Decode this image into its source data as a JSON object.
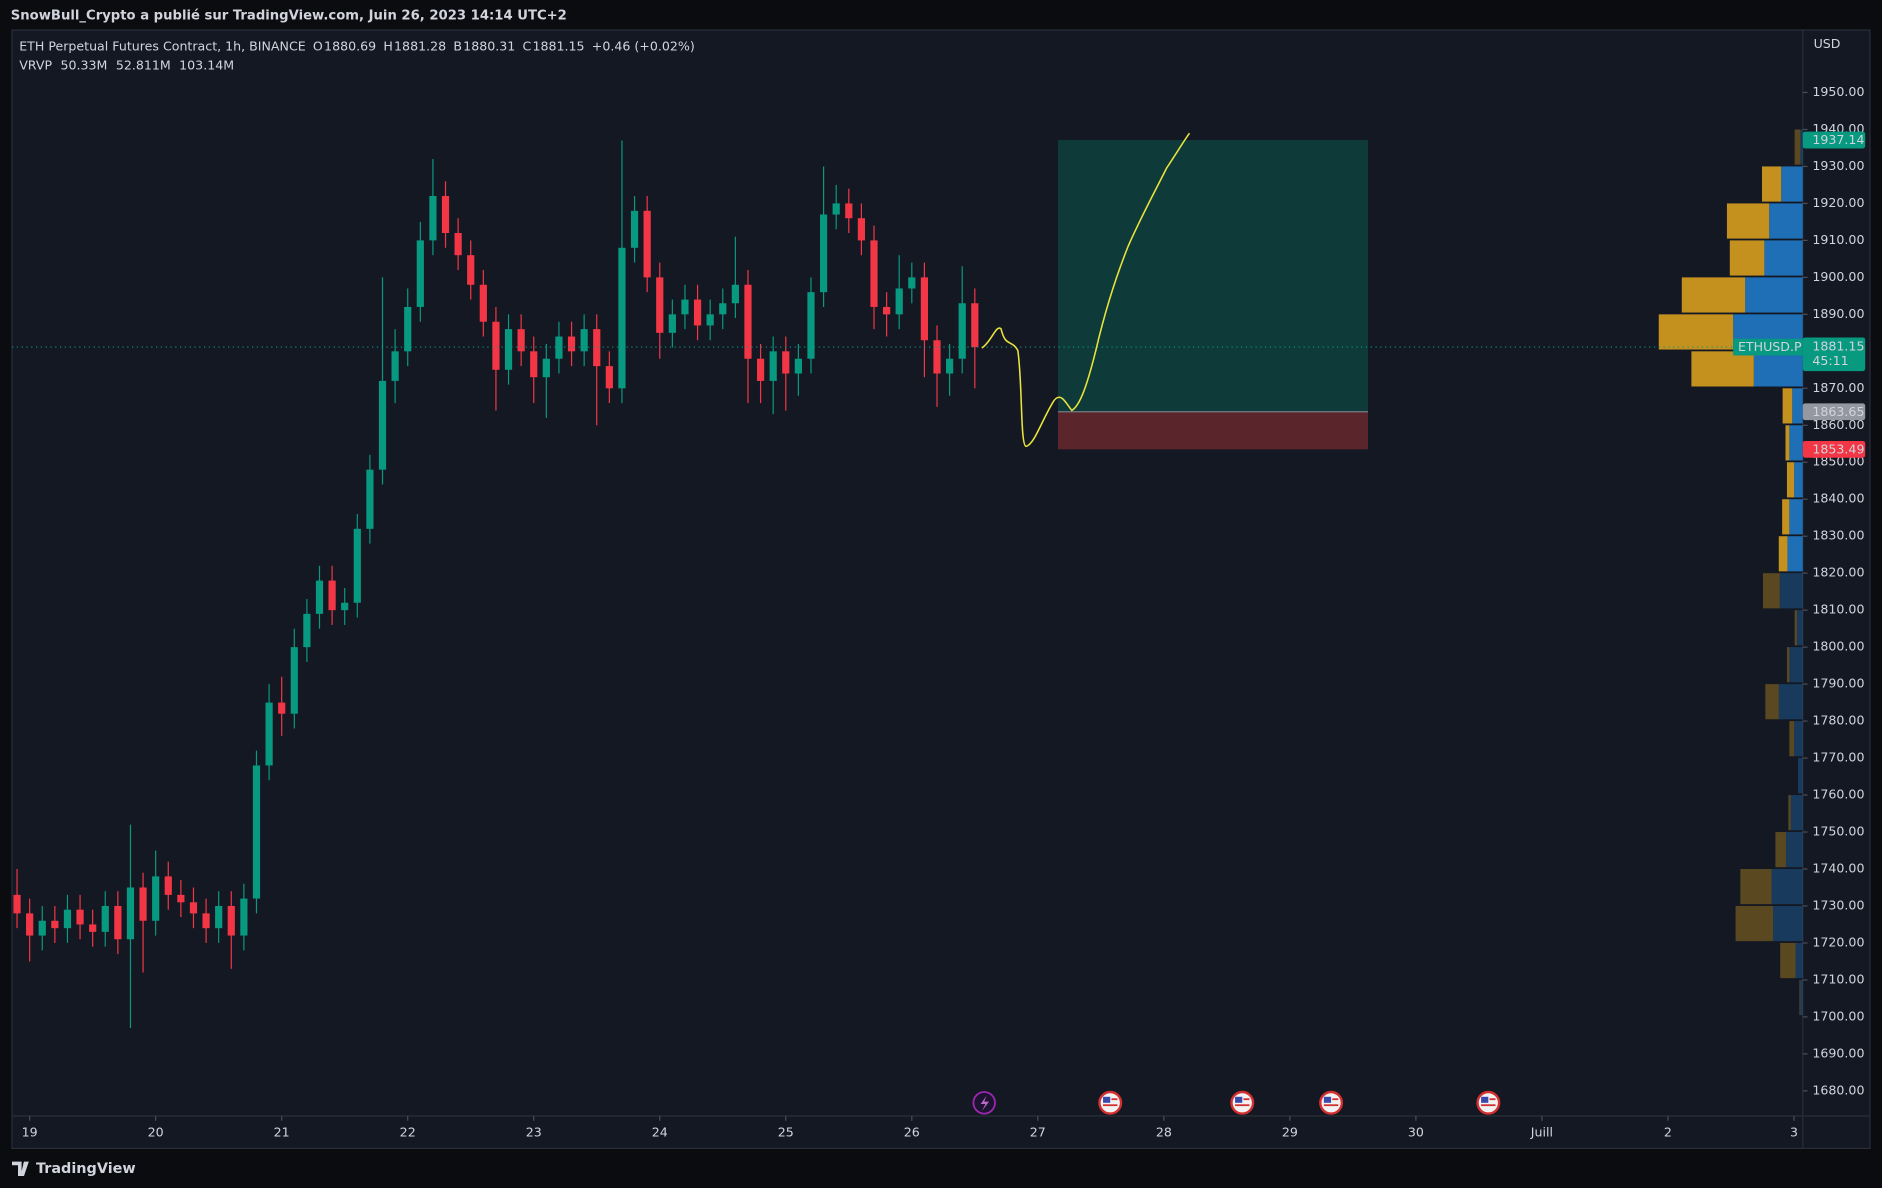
{
  "header": {
    "published": "SnowBull_Crypto a publié sur TradingView.com, Juin 26, 2023 14:14 UTC+2"
  },
  "footer": {
    "brand": "TradingView"
  },
  "chart_data": {
    "type": "candlestick",
    "title": "ETH Perpetual Futures Contract, 1h, BINANCE",
    "ohlc_legend": [
      {
        "label": "O",
        "value": 1880.69
      },
      {
        "label": "H",
        "value": 1881.28
      },
      {
        "label": "B",
        "value": 1880.31
      },
      {
        "label": "C",
        "value": 1881.15
      }
    ],
    "change": "+0.46 (+0.02%)",
    "currency": "USD",
    "symbol": "ETHUSD.P",
    "countdown": "45:11",
    "up_color": "#089981",
    "down_color": "#f23645",
    "x": [
      -0.1,
      0,
      0.1,
      0.2,
      0.3,
      0.4,
      0.5,
      0.6,
      0.7,
      0.8,
      0.9,
      1,
      1.1,
      1.2,
      1.3,
      1.4,
      1.5,
      1.6,
      1.7,
      1.8,
      1.9,
      2,
      2.1,
      2.2,
      2.3,
      2.4,
      2.5,
      2.6,
      2.7,
      2.8,
      2.9,
      3,
      3.1,
      3.2,
      3.3,
      3.4,
      3.5,
      3.6,
      3.7,
      3.8,
      3.9,
      4,
      4.1,
      4.2,
      4.3,
      4.4,
      4.5,
      4.6,
      4.7,
      4.8,
      4.9,
      5,
      5.1,
      5.2,
      5.3,
      5.4,
      5.5,
      5.6,
      5.7,
      5.8,
      5.9,
      6,
      6.1,
      6.2,
      6.3,
      6.4,
      6.5,
      6.6,
      6.7,
      6.8,
      6.9,
      7,
      7.1,
      7.2,
      7.3,
      7.4,
      7.5
    ],
    "open": [
      1733,
      1728,
      1722,
      1726,
      1724,
      1729,
      1725,
      1723,
      1730,
      1721,
      1735,
      1726,
      1738,
      1733,
      1731,
      1728,
      1724,
      1730,
      1722,
      1732,
      1768,
      1785,
      1782,
      1800,
      1809,
      1818,
      1810,
      1812,
      1832,
      1848,
      1872,
      1880,
      1892,
      1910,
      1922,
      1912,
      1906,
      1898,
      1888,
      1875,
      1886,
      1880,
      1873,
      1878,
      1884,
      1880,
      1886,
      1876,
      1870,
      1908,
      1918,
      1900,
      1885,
      1890,
      1894,
      1887,
      1890,
      1893,
      1898,
      1878,
      1872,
      1880,
      1874,
      1878,
      1896,
      1917,
      1920,
      1916,
      1910,
      1892,
      1890,
      1897,
      1900,
      1883,
      1874,
      1878,
      1893
    ],
    "high": [
      1740,
      1732,
      1730,
      1730,
      1733,
      1733,
      1729,
      1734,
      1734,
      1752,
      1739,
      1745,
      1742,
      1737,
      1735,
      1732,
      1734,
      1734,
      1736,
      1772,
      1790,
      1792,
      1805,
      1813,
      1822,
      1822,
      1816,
      1836,
      1852,
      1900,
      1886,
      1897,
      1915,
      1932,
      1926,
      1916,
      1910,
      1902,
      1892,
      1890,
      1890,
      1884,
      1882,
      1888,
      1888,
      1890,
      1890,
      1880,
      1937,
      1922,
      1922,
      1904,
      1894,
      1898,
      1898,
      1894,
      1897,
      1911,
      1902,
      1882,
      1884,
      1884,
      1882,
      1900,
      1930,
      1925,
      1924,
      1920,
      1914,
      1896,
      1906,
      1904,
      1904,
      1887,
      1882,
      1903,
      1897
    ],
    "low": [
      1724,
      1715,
      1718,
      1720,
      1720,
      1721,
      1719,
      1719,
      1717,
      1697,
      1712,
      1722,
      1729,
      1727,
      1724,
      1720,
      1720,
      1713,
      1718,
      1728,
      1764,
      1776,
      1778,
      1796,
      1805,
      1806,
      1806,
      1808,
      1828,
      1844,
      1866,
      1876,
      1888,
      1906,
      1908,
      1902,
      1894,
      1884,
      1864,
      1871,
      1876,
      1866,
      1862,
      1874,
      1876,
      1876,
      1860,
      1866,
      1866,
      1904,
      1896,
      1878,
      1881,
      1886,
      1883,
      1883,
      1886,
      1889,
      1866,
      1866,
      1863,
      1864,
      1868,
      1874,
      1892,
      1913,
      1912,
      1906,
      1886,
      1884,
      1886,
      1893,
      1873,
      1865,
      1868,
      1874,
      1870
    ],
    "close": [
      1728,
      1722,
      1726,
      1724,
      1729,
      1725,
      1723,
      1730,
      1721,
      1735,
      1726,
      1738,
      1733,
      1731,
      1728,
      1724,
      1730,
      1722,
      1732,
      1768,
      1785,
      1782,
      1800,
      1809,
      1818,
      1810,
      1812,
      1832,
      1848,
      1872,
      1880,
      1892,
      1910,
      1922,
      1912,
      1906,
      1898,
      1888,
      1875,
      1886,
      1880,
      1873,
      1878,
      1884,
      1880,
      1886,
      1876,
      1870,
      1908,
      1918,
      1900,
      1885,
      1890,
      1894,
      1887,
      1890,
      1893,
      1898,
      1878,
      1872,
      1880,
      1874,
      1878,
      1896,
      1917,
      1920,
      1916,
      1910,
      1892,
      1890,
      1897,
      1900,
      1883,
      1874,
      1878,
      1893,
      1881.15
    ],
    "xlim": [
      -0.14,
      14.07
    ],
    "xticks": [
      {
        "value": 0,
        "label": "19"
      },
      {
        "value": 1,
        "label": "20"
      },
      {
        "value": 2,
        "label": "21"
      },
      {
        "value": 3,
        "label": "22"
      },
      {
        "value": 4,
        "label": "23"
      },
      {
        "value": 5,
        "label": "24"
      },
      {
        "value": 6,
        "label": "25"
      },
      {
        "value": 7,
        "label": "26"
      },
      {
        "value": 8,
        "label": "27"
      },
      {
        "value": 9,
        "label": "28"
      },
      {
        "value": 10,
        "label": "29"
      },
      {
        "value": 11,
        "label": "30"
      },
      {
        "value": 12,
        "label": "Juill"
      },
      {
        "value": 13,
        "label": "2"
      },
      {
        "value": 14,
        "label": "3"
      }
    ],
    "ylim": [
      1673.2,
      1966.9
    ],
    "yticks": [
      {
        "value": 1680,
        "label": "1680.00"
      },
      {
        "value": 1690,
        "label": "1690.00"
      },
      {
        "value": 1700,
        "label": "1700.00"
      },
      {
        "value": 1710,
        "label": "1710.00"
      },
      {
        "value": 1720,
        "label": "1720.00"
      },
      {
        "value": 1730,
        "label": "1730.00"
      },
      {
        "value": 1740,
        "label": "1740.00"
      },
      {
        "value": 1750,
        "label": "1750.00"
      },
      {
        "value": 1760,
        "label": "1760.00"
      },
      {
        "value": 1770,
        "label": "1770.00"
      },
      {
        "value": 1780,
        "label": "1780.00"
      },
      {
        "value": 1790,
        "label": "1790.00"
      },
      {
        "value": 1800,
        "label": "1800.00"
      },
      {
        "value": 1810,
        "label": "1810.00"
      },
      {
        "value": 1820,
        "label": "1820.00"
      },
      {
        "value": 1830,
        "label": "1830.00"
      },
      {
        "value": 1840,
        "label": "1840.00"
      },
      {
        "value": 1850,
        "label": "1850.00"
      },
      {
        "value": 1860,
        "label": "1860.00"
      },
      {
        "value": 1870,
        "label": "1870.00"
      },
      {
        "value": 1880,
        "label": "1880.00"
      },
      {
        "value": 1890,
        "label": "1890.00"
      },
      {
        "value": 1900,
        "label": "1900.00"
      },
      {
        "value": 1910,
        "label": "1910.00"
      },
      {
        "value": 1920,
        "label": "1920.00"
      },
      {
        "value": 1930,
        "label": "1930.00"
      },
      {
        "value": 1940,
        "label": "1940.00"
      },
      {
        "value": 1950,
        "label": "1950.00"
      }
    ],
    "price_labels": [
      {
        "value": 1937.14,
        "color": "#089981"
      },
      {
        "value": 1863.65,
        "color": "#9598a1"
      },
      {
        "value": 1853.49,
        "color": "#f23645"
      }
    ],
    "position": {
      "target": 1937.14,
      "entry": 1863.65,
      "stop": 1853.49,
      "x": [
        8.16,
        10.62
      ],
      "profit_color": "#0f3a3a",
      "loss_color": "#5a252b"
    },
    "volume_profile": {
      "name": "VRVP",
      "totals": [
        50.33,
        52.811,
        103.14
      ],
      "total_labels": [
        "50.33M",
        "52.811M",
        "103.14M"
      ],
      "total_colors": [
        "#2f86d1",
        "#e0a526",
        "#4a4e59"
      ],
      "bucket": 10,
      "prices": [
        1700,
        1710,
        1720,
        1730,
        1740,
        1750,
        1760,
        1770,
        1780,
        1790,
        1800,
        1810,
        1820,
        1830,
        1840,
        1850,
        1860,
        1870,
        1880,
        1890,
        1900,
        1910,
        1920,
        1930
      ],
      "up": [
        0.25,
        0.75,
        3.1,
        3.25,
        1.75,
        1.25,
        0.5,
        0.9,
        2.5,
        1.4,
        0.6,
        2.4,
        1.6,
        1.4,
        0.9,
        1.4,
        1.1,
        5.1,
        7.25,
        6,
        4,
        3.5,
        2.25,
        0.25
      ],
      "down": [
        0.1,
        1.6,
        3.9,
        3.25,
        1.1,
        0.25,
        0,
        0.5,
        1.4,
        0.25,
        0.25,
        1.75,
        0.9,
        0.75,
        0.75,
        0.4,
        1,
        6.5,
        7.75,
        6.6,
        3.6,
        4.4,
        2,
        0.6
      ],
      "xlim": [
        0,
        15
      ],
      "value_area": [
        1820,
        1930
      ],
      "up_color": "#1e6fb5",
      "down_color": "#c4911f"
    }
  }
}
